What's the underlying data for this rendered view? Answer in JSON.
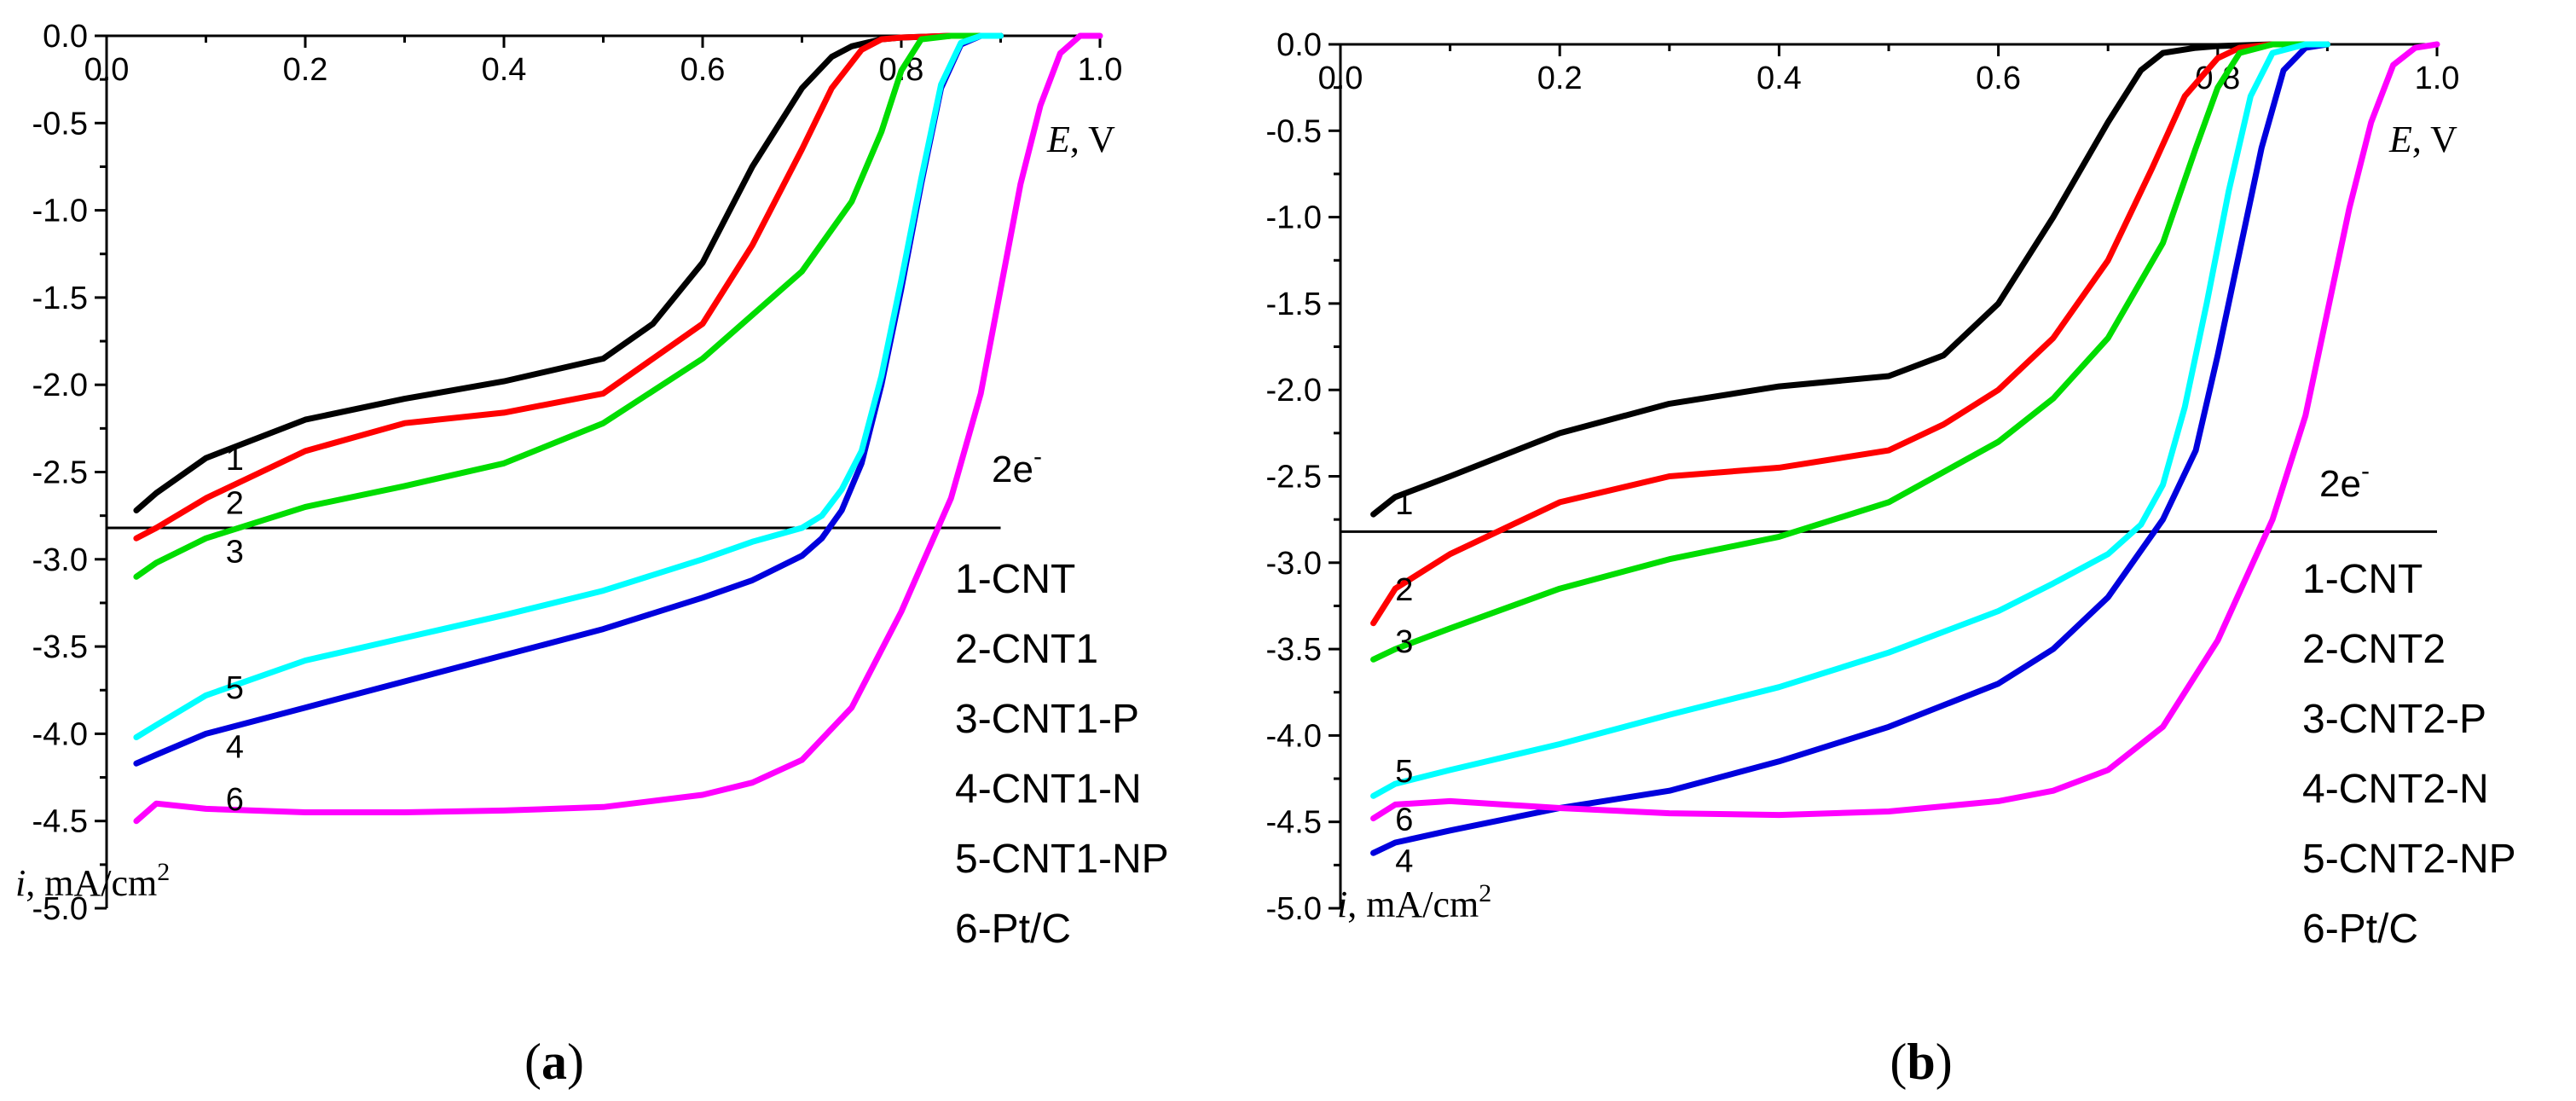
{
  "figure": {
    "panels": [
      {
        "caption_letter": "a"
      },
      {
        "caption_letter": "b"
      }
    ]
  },
  "chart_data": [
    {
      "type": "line",
      "panel": "a",
      "caption": "(a)",
      "title": "",
      "xlabel_var": "E",
      "xlabel_unit": ", V",
      "ylabel_var": "i",
      "ylabel_unit": ", mA/cm",
      "ylabel_sup": "2",
      "xlim": [
        0,
        1.0
      ],
      "ylim": [
        -5.0,
        0
      ],
      "xticks": [
        0,
        0.2,
        0.4,
        0.6,
        0.8,
        1.0
      ],
      "xtick_labels": [
        "0.0",
        "0.2",
        "0.4",
        "0.6",
        "0.8",
        "1.0"
      ],
      "yticks": [
        0,
        -0.5,
        -1.0,
        -1.5,
        -2.0,
        -2.5,
        -3.0,
        -3.5,
        -4.0,
        -4.5,
        -5.0
      ],
      "ytick_labels": [
        "0.0",
        "-0.5",
        "-1.0",
        "-1.5",
        "-2.0",
        "-2.5",
        "-3.0",
        "-3.5",
        "-4.0",
        "-4.5",
        "-5.0"
      ],
      "reference_line": {
        "y": -2.82,
        "x_range": [
          0,
          0.9
        ],
        "label": "2e",
        "label_sup": "-"
      },
      "legend": [
        "1-CNT",
        "2-CNT1",
        "3-CNT1-P",
        "4-CNT1-N",
        "5-CNT1-NP",
        "6-Pt/C"
      ],
      "series": [
        {
          "name": "1-CNT",
          "label": "1",
          "color": "#000000",
          "label_pos": [
            0.12,
            -2.42
          ],
          "x": [
            0.03,
            0.05,
            0.1,
            0.2,
            0.3,
            0.4,
            0.5,
            0.55,
            0.6,
            0.65,
            0.7,
            0.73,
            0.75,
            0.78,
            0.8,
            0.85,
            0.9
          ],
          "y": [
            -2.72,
            -2.62,
            -2.42,
            -2.2,
            -2.08,
            -1.98,
            -1.85,
            -1.65,
            -1.3,
            -0.75,
            -0.3,
            -0.12,
            -0.06,
            -0.02,
            -0.01,
            0,
            0
          ]
        },
        {
          "name": "2-CNT1",
          "label": "2",
          "color": "#ff0000",
          "label_pos": [
            0.12,
            -2.67
          ],
          "x": [
            0.03,
            0.05,
            0.1,
            0.2,
            0.3,
            0.4,
            0.5,
            0.6,
            0.65,
            0.7,
            0.73,
            0.76,
            0.78,
            0.8,
            0.85,
            0.9
          ],
          "y": [
            -2.88,
            -2.82,
            -2.65,
            -2.38,
            -2.22,
            -2.16,
            -2.05,
            -1.65,
            -1.2,
            -0.65,
            -0.3,
            -0.08,
            -0.02,
            -0.01,
            0,
            0
          ]
        },
        {
          "name": "3-CNT1-P",
          "label": "3",
          "color": "#00dd00",
          "label_pos": [
            0.12,
            -2.95
          ],
          "x": [
            0.03,
            0.05,
            0.1,
            0.2,
            0.3,
            0.4,
            0.5,
            0.6,
            0.65,
            0.7,
            0.75,
            0.78,
            0.8,
            0.82,
            0.85,
            0.9
          ],
          "y": [
            -3.1,
            -3.02,
            -2.88,
            -2.7,
            -2.58,
            -2.45,
            -2.22,
            -1.85,
            -1.6,
            -1.35,
            -0.95,
            -0.55,
            -0.2,
            -0.02,
            0,
            0
          ]
        },
        {
          "name": "4-CNT1-N",
          "label": "4",
          "color": "#0000dd",
          "label_pos": [
            0.12,
            -4.07
          ],
          "x": [
            0.03,
            0.05,
            0.1,
            0.2,
            0.3,
            0.4,
            0.5,
            0.6,
            0.65,
            0.7,
            0.72,
            0.74,
            0.76,
            0.78,
            0.8,
            0.82,
            0.84,
            0.86,
            0.88,
            0.9
          ],
          "y": [
            -4.17,
            -4.12,
            -4.0,
            -3.85,
            -3.7,
            -3.55,
            -3.4,
            -3.22,
            -3.12,
            -2.98,
            -2.88,
            -2.72,
            -2.45,
            -2.0,
            -1.45,
            -0.85,
            -0.3,
            -0.05,
            0,
            0
          ]
        },
        {
          "name": "5-CNT1-NP",
          "label": "5",
          "color": "#00ffff",
          "label_pos": [
            0.12,
            -3.73
          ],
          "x": [
            0.03,
            0.05,
            0.1,
            0.2,
            0.3,
            0.4,
            0.5,
            0.6,
            0.65,
            0.7,
            0.72,
            0.74,
            0.76,
            0.78,
            0.8,
            0.82,
            0.84,
            0.86,
            0.88,
            0.9
          ],
          "y": [
            -4.02,
            -3.95,
            -3.78,
            -3.58,
            -3.45,
            -3.32,
            -3.18,
            -3.0,
            -2.9,
            -2.82,
            -2.75,
            -2.6,
            -2.38,
            -1.95,
            -1.4,
            -0.82,
            -0.28,
            -0.04,
            0,
            0
          ]
        },
        {
          "name": "6-Pt/C",
          "label": "6",
          "color": "#ff00ff",
          "label_pos": [
            0.12,
            -4.37
          ],
          "x": [
            0.03,
            0.05,
            0.1,
            0.2,
            0.3,
            0.4,
            0.5,
            0.6,
            0.65,
            0.7,
            0.75,
            0.8,
            0.85,
            0.88,
            0.9,
            0.92,
            0.94,
            0.96,
            0.98,
            1.0
          ],
          "y": [
            -4.5,
            -4.4,
            -4.43,
            -4.45,
            -4.45,
            -4.44,
            -4.42,
            -4.35,
            -4.28,
            -4.15,
            -3.85,
            -3.3,
            -2.65,
            -2.05,
            -1.45,
            -0.85,
            -0.4,
            -0.1,
            0,
            0
          ]
        }
      ]
    },
    {
      "type": "line",
      "panel": "b",
      "caption": "(b)",
      "title": "",
      "xlabel_var": "E",
      "xlabel_unit": ", V",
      "ylabel_var": "i",
      "ylabel_unit": ", mA/cm",
      "ylabel_sup": "2",
      "xlim": [
        0,
        1.0
      ],
      "ylim": [
        -5.0,
        0
      ],
      "xticks": [
        0,
        0.2,
        0.4,
        0.6,
        0.8,
        1.0
      ],
      "xtick_labels": [
        "0.0",
        "0.2",
        "0.4",
        "0.6",
        "0.8",
        "1.0"
      ],
      "yticks": [
        0,
        -0.5,
        -1.0,
        -1.5,
        -2.0,
        -2.5,
        -3.0,
        -3.5,
        -4.0,
        -4.5,
        -5.0
      ],
      "ytick_labels": [
        "0.0",
        "-0.5",
        "-1.0",
        "-1.5",
        "-2.0",
        "-2.5",
        "-3.0",
        "-3.5",
        "-4.0",
        "-4.5",
        "-5.0"
      ],
      "reference_line": {
        "y": -2.82,
        "x_range": [
          0,
          1.0
        ],
        "label": "2e",
        "label_sup": "-"
      },
      "legend": [
        "1-CNT",
        "2-CNT2",
        "3-CNT2-P",
        "4-CNT2-N",
        "5-CNT2-NP",
        "6-Pt/C"
      ],
      "series": [
        {
          "name": "1-CNT",
          "label": "1",
          "color": "#000000",
          "label_pos": [
            0.05,
            -2.65
          ],
          "x": [
            0.03,
            0.05,
            0.1,
            0.2,
            0.3,
            0.4,
            0.5,
            0.55,
            0.6,
            0.65,
            0.7,
            0.73,
            0.75,
            0.78,
            0.8,
            0.85,
            0.9
          ],
          "y": [
            -2.72,
            -2.62,
            -2.5,
            -2.25,
            -2.08,
            -1.98,
            -1.92,
            -1.8,
            -1.5,
            -1.0,
            -0.45,
            -0.15,
            -0.05,
            -0.02,
            -0.01,
            0,
            0
          ]
        },
        {
          "name": "2-CNT2",
          "label": "2",
          "color": "#ff0000",
          "label_pos": [
            0.05,
            -3.15
          ],
          "x": [
            0.03,
            0.05,
            0.1,
            0.15,
            0.2,
            0.3,
            0.4,
            0.5,
            0.55,
            0.6,
            0.65,
            0.7,
            0.74,
            0.77,
            0.8,
            0.82,
            0.85,
            0.9
          ],
          "y": [
            -3.35,
            -3.15,
            -2.95,
            -2.8,
            -2.65,
            -2.5,
            -2.45,
            -2.35,
            -2.2,
            -2.0,
            -1.7,
            -1.25,
            -0.72,
            -0.3,
            -0.08,
            -0.02,
            0,
            0
          ]
        },
        {
          "name": "3-CNT2-P",
          "label": "3",
          "color": "#00dd00",
          "label_pos": [
            0.05,
            -3.45
          ],
          "x": [
            0.03,
            0.05,
            0.1,
            0.2,
            0.3,
            0.4,
            0.5,
            0.6,
            0.65,
            0.7,
            0.75,
            0.78,
            0.8,
            0.82,
            0.85,
            0.9
          ],
          "y": [
            -3.56,
            -3.5,
            -3.38,
            -3.15,
            -2.98,
            -2.85,
            -2.65,
            -2.3,
            -2.05,
            -1.7,
            -1.15,
            -0.6,
            -0.25,
            -0.05,
            0,
            0
          ]
        },
        {
          "name": "4-CNT2-N",
          "label": "4",
          "color": "#0000dd",
          "label_pos": [
            0.05,
            -4.72
          ],
          "x": [
            0.03,
            0.05,
            0.1,
            0.2,
            0.3,
            0.4,
            0.5,
            0.6,
            0.65,
            0.7,
            0.75,
            0.78,
            0.8,
            0.82,
            0.84,
            0.86,
            0.88,
            0.9
          ],
          "y": [
            -4.68,
            -4.62,
            -4.55,
            -4.42,
            -4.32,
            -4.15,
            -3.95,
            -3.7,
            -3.5,
            -3.2,
            -2.75,
            -2.35,
            -1.8,
            -1.2,
            -0.6,
            -0.15,
            -0.02,
            0
          ]
        },
        {
          "name": "5-CNT2-NP",
          "label": "5",
          "color": "#00ffff",
          "label_pos": [
            0.05,
            -4.2
          ],
          "x": [
            0.03,
            0.05,
            0.1,
            0.2,
            0.3,
            0.4,
            0.5,
            0.6,
            0.65,
            0.7,
            0.73,
            0.75,
            0.77,
            0.79,
            0.81,
            0.83,
            0.85,
            0.88,
            0.9
          ],
          "y": [
            -4.35,
            -4.28,
            -4.2,
            -4.05,
            -3.88,
            -3.72,
            -3.52,
            -3.28,
            -3.12,
            -2.95,
            -2.78,
            -2.55,
            -2.1,
            -1.5,
            -0.85,
            -0.3,
            -0.05,
            0,
            0
          ]
        },
        {
          "name": "6-Pt/C",
          "label": "6",
          "color": "#ff00ff",
          "label_pos": [
            0.05,
            -4.48
          ],
          "x": [
            0.03,
            0.05,
            0.1,
            0.2,
            0.3,
            0.4,
            0.5,
            0.6,
            0.65,
            0.7,
            0.75,
            0.8,
            0.85,
            0.88,
            0.9,
            0.92,
            0.94,
            0.96,
            0.98,
            1.0
          ],
          "y": [
            -4.48,
            -4.4,
            -4.38,
            -4.42,
            -4.45,
            -4.46,
            -4.44,
            -4.38,
            -4.32,
            -4.2,
            -3.95,
            -3.45,
            -2.75,
            -2.15,
            -1.55,
            -0.95,
            -0.45,
            -0.12,
            -0.02,
            0
          ]
        }
      ]
    }
  ]
}
